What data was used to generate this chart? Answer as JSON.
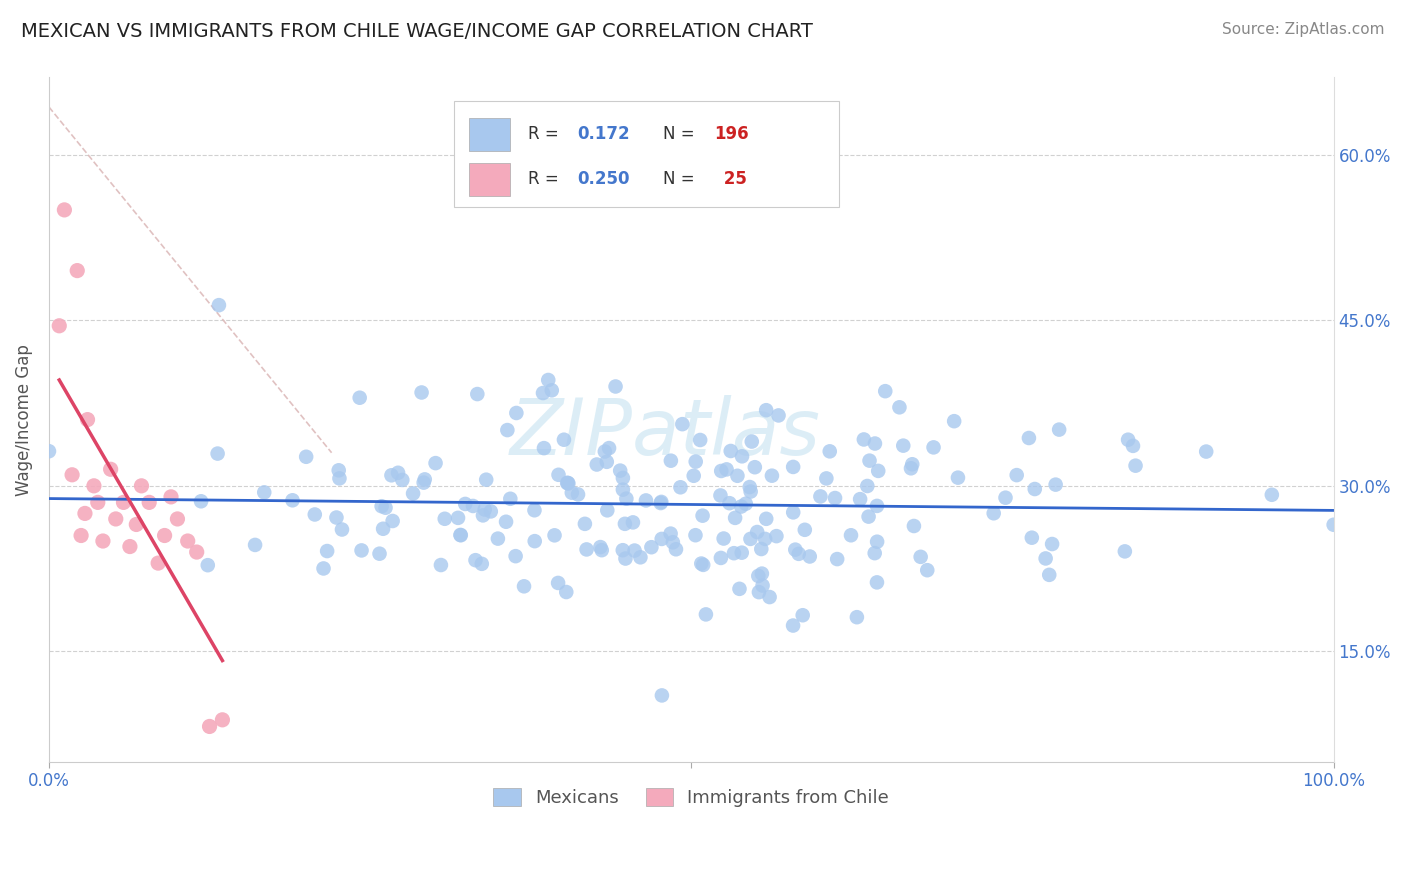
{
  "title": "MEXICAN VS IMMIGRANTS FROM CHILE WAGE/INCOME GAP CORRELATION CHART",
  "source": "Source: ZipAtlas.com",
  "ylabel": "Wage/Income Gap",
  "xlim": [
    0.0,
    1.0
  ],
  "ylim": [
    0.05,
    0.67
  ],
  "yticks": [
    0.15,
    0.3,
    0.45,
    0.6
  ],
  "ytick_labels": [
    "15.0%",
    "30.0%",
    "45.0%",
    "60.0%"
  ],
  "xticks": [
    0.0,
    0.5,
    1.0
  ],
  "xtick_labels": [
    "0.0%",
    "",
    "100.0%"
  ],
  "blue_R": 0.172,
  "blue_N": 196,
  "pink_R": 0.25,
  "pink_N": 25,
  "blue_color": "#A8C8EE",
  "pink_color": "#F4AABC",
  "blue_line_color": "#3366CC",
  "pink_line_color": "#DD4466",
  "diag_line_color": "#DDBBBB",
  "watermark": "ZIPatlas",
  "background_color": "#ffffff",
  "grid_color": "#cccccc",
  "title_color": "#222222",
  "axis_label_color": "#4477CC",
  "legend_R_color": "#4477CC",
  "legend_N_color": "#CC2222",
  "title_fontsize": 14,
  "source_fontsize": 11,
  "tick_fontsize": 12,
  "ylabel_fontsize": 12
}
